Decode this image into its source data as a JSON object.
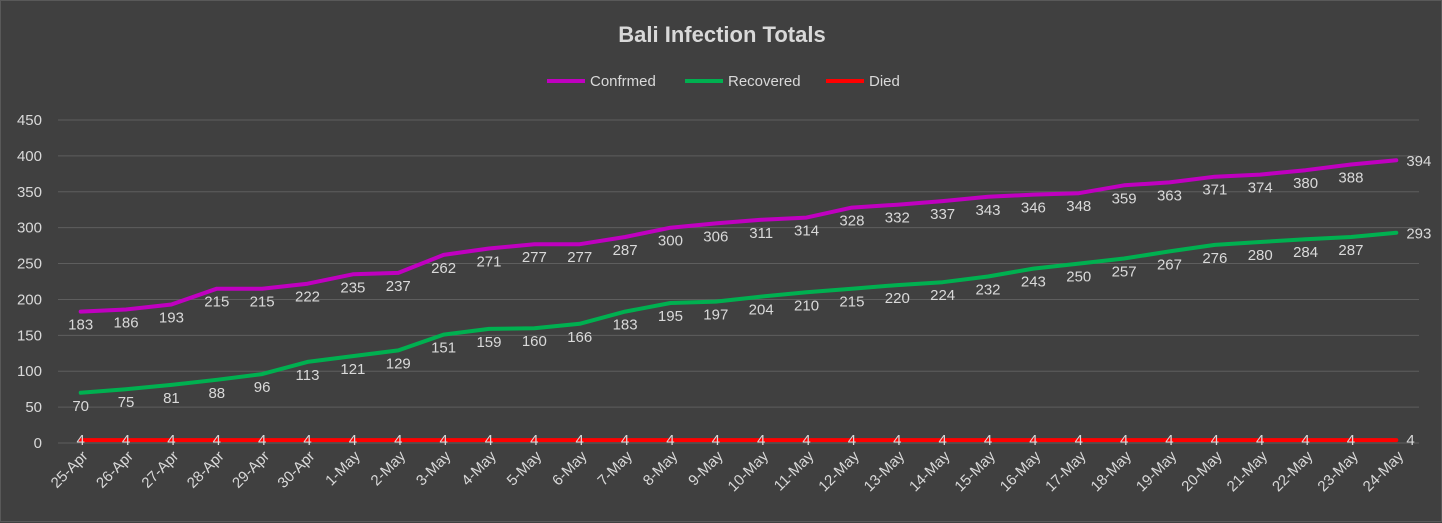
{
  "chart_data": {
    "type": "line",
    "title": "Bali Infection Totals",
    "xlabel": "",
    "ylabel": "",
    "ylim": [
      0,
      450
    ],
    "yticks": [
      0,
      50,
      100,
      150,
      200,
      250,
      300,
      350,
      400,
      450
    ],
    "grid": true,
    "legend_position": "top",
    "categories": [
      "25-Apr",
      "26-Apr",
      "27-Apr",
      "28-Apr",
      "29-Apr",
      "30-Apr",
      "1-May",
      "2-May",
      "3-May",
      "4-May",
      "5-May",
      "6-May",
      "7-May",
      "8-May",
      "9-May",
      "10-May",
      "11-May",
      "12-May",
      "13-May",
      "14-May",
      "15-May",
      "16-May",
      "17-May",
      "18-May",
      "19-May",
      "20-May",
      "21-May",
      "22-May",
      "23-May",
      "24-May"
    ],
    "series": [
      {
        "name": "Confrmed",
        "color": "#c000c0",
        "values": [
          183,
          186,
          193,
          215,
          215,
          222,
          235,
          237,
          262,
          271,
          277,
          277,
          287,
          300,
          306,
          311,
          314,
          328,
          332,
          337,
          343,
          346,
          348,
          359,
          363,
          371,
          374,
          380,
          388,
          394
        ]
      },
      {
        "name": "Recovered",
        "color": "#00b050",
        "values": [
          70,
          75,
          81,
          88,
          96,
          113,
          121,
          129,
          151,
          159,
          160,
          166,
          183,
          195,
          197,
          204,
          210,
          215,
          220,
          224,
          232,
          243,
          250,
          257,
          267,
          276,
          280,
          284,
          287,
          293
        ]
      },
      {
        "name": "Died",
        "color": "#ff0000",
        "values": [
          4,
          4,
          4,
          4,
          4,
          4,
          4,
          4,
          4,
          4,
          4,
          4,
          4,
          4,
          4,
          4,
          4,
          4,
          4,
          4,
          4,
          4,
          4,
          4,
          4,
          4,
          4,
          4,
          4,
          4
        ]
      }
    ]
  }
}
